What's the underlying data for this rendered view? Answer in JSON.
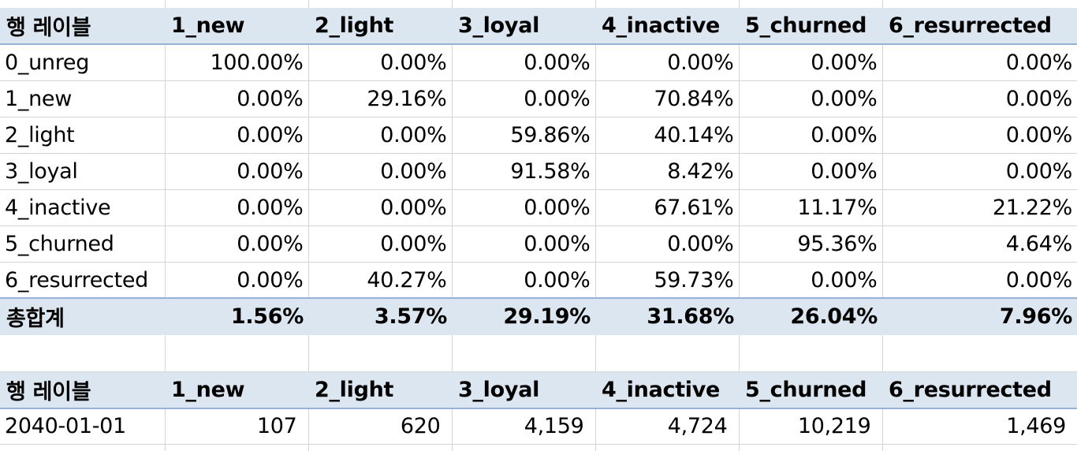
{
  "pivot1": {
    "row_header": "행 레이블",
    "columns": [
      "1_new",
      "2_light",
      "3_loyal",
      "4_inactive",
      "5_churned",
      "6_resurrected"
    ],
    "rows": [
      {
        "label": "0_unreg",
        "values": [
          "100.00%",
          "0.00%",
          "0.00%",
          "0.00%",
          "0.00%",
          "0.00%"
        ]
      },
      {
        "label": "1_new",
        "values": [
          "0.00%",
          "29.16%",
          "0.00%",
          "70.84%",
          "0.00%",
          "0.00%"
        ]
      },
      {
        "label": "2_light",
        "values": [
          "0.00%",
          "0.00%",
          "59.86%",
          "40.14%",
          "0.00%",
          "0.00%"
        ]
      },
      {
        "label": "3_loyal",
        "values": [
          "0.00%",
          "0.00%",
          "91.58%",
          "8.42%",
          "0.00%",
          "0.00%"
        ]
      },
      {
        "label": "4_inactive",
        "values": [
          "0.00%",
          "0.00%",
          "0.00%",
          "67.61%",
          "11.17%",
          "21.22%"
        ]
      },
      {
        "label": "5_churned",
        "values": [
          "0.00%",
          "0.00%",
          "0.00%",
          "0.00%",
          "95.36%",
          "4.64%"
        ]
      },
      {
        "label": "6_resurrected",
        "values": [
          "0.00%",
          "40.27%",
          "0.00%",
          "59.73%",
          "0.00%",
          "0.00%"
        ]
      }
    ],
    "total": {
      "label": "총합계",
      "values": [
        "1.56%",
        "3.57%",
        "29.19%",
        "31.68%",
        "26.04%",
        "7.96%"
      ]
    }
  },
  "pivot2": {
    "row_header": "행 레이블",
    "columns": [
      "1_new",
      "2_light",
      "3_loyal",
      "4_inactive",
      "5_churned",
      "6_resurrected"
    ],
    "rows": [
      {
        "label": "2040-01-01",
        "values": [
          "107",
          "620",
          "4,159",
          "4,724",
          "10,219",
          "1,469"
        ]
      }
    ]
  },
  "colors": {
    "header_fill": "#dce6f1",
    "header_border": "#95b3d7",
    "gridline": "#d4d4d4"
  }
}
